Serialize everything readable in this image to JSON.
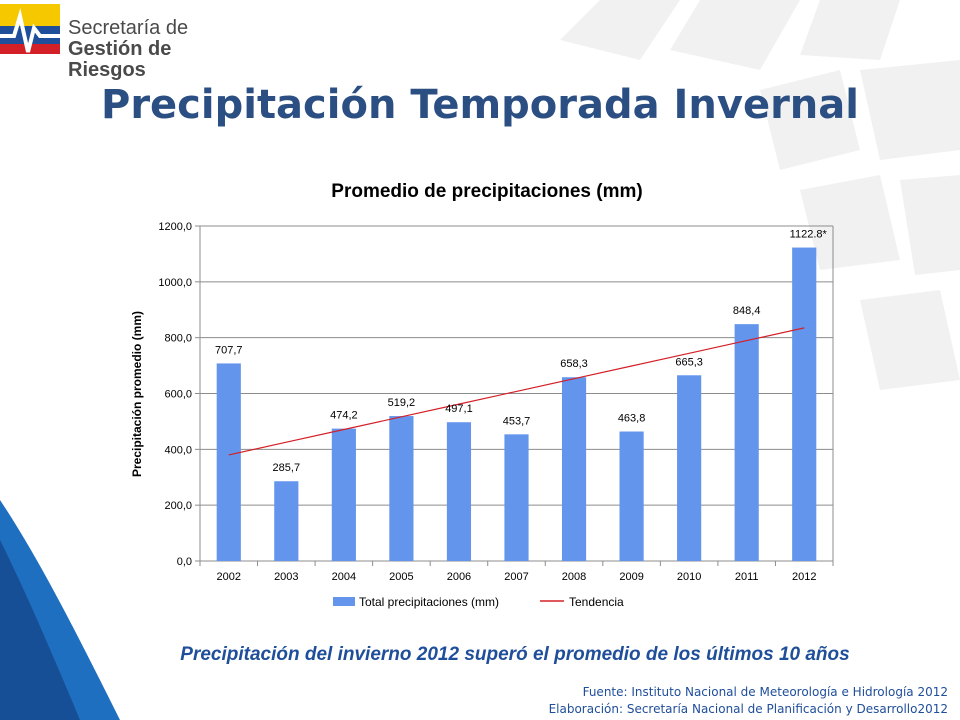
{
  "logo": {
    "line1": "Secretaría de",
    "line2": "Gestión de Riesgos",
    "colors": [
      "#f6c800",
      "#1f4e9a",
      "#d32027"
    ]
  },
  "slide": {
    "title": "Precipitación Temporada Invernal",
    "subtitle": "Precipitación del invierno 2012 superó el promedio de los últimos 10 años",
    "source_line1": "Fuente: Instituto Nacional de Meteorología e Hidrología 2012",
    "source_line2": "Elaboración: Secretaría Nacional de Planificación y Desarrollo2012"
  },
  "chart_data": {
    "type": "bar",
    "title": "Promedio de precipitaciones (mm)",
    "ylabel": "Precipitación promedio  (mm)",
    "xlabel": "",
    "categories": [
      "2002",
      "2003",
      "2004",
      "2005",
      "2006",
      "2007",
      "2008",
      "2009",
      "2010",
      "2011",
      "2012"
    ],
    "series": [
      {
        "name": "Total precipitaciones (mm)",
        "values": [
          707.7,
          285.7,
          474.2,
          519.2,
          497.1,
          453.7,
          658.3,
          463.8,
          665.3,
          848.4,
          1122.8
        ],
        "labels": [
          "707,7",
          "285,7",
          "474,2",
          "519,2",
          "497,1",
          "453,7",
          "658,3",
          "463,8",
          "665,3",
          "848,4",
          "1122.8*"
        ],
        "color": "#6495ed"
      },
      {
        "name": "Tendencia",
        "type": "line",
        "values": [
          380,
          425.5,
          471,
          516.5,
          562,
          607.5,
          653,
          698.5,
          744,
          789.5,
          835
        ],
        "color": "#d32027"
      }
    ],
    "yticks": [
      0,
      200,
      400,
      600,
      800,
      1000,
      1200
    ],
    "ytick_labels": [
      "0,0",
      "200,0",
      "400,0",
      "600,0",
      "800,0",
      "1000,0",
      "1200,0"
    ],
    "ylim": [
      0,
      1200
    ],
    "grid": true,
    "legend": "bottom"
  }
}
